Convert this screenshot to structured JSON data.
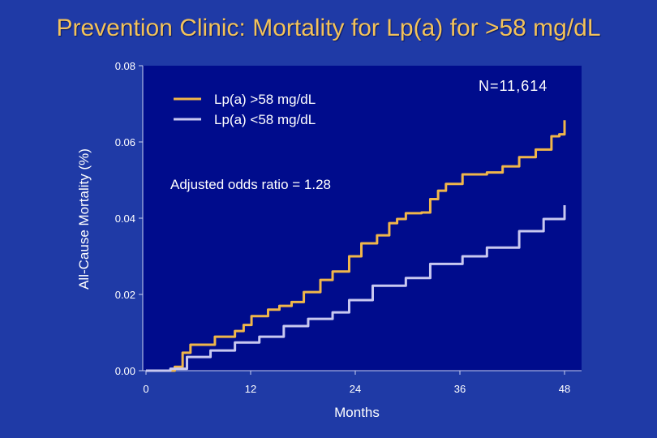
{
  "title": "Prevention Clinic: Mortality for Lp(a) for >58 mg/dL",
  "chart_data": {
    "type": "line",
    "xlabel": "Months",
    "ylabel": "All-Cause Mortality (%)",
    "xlim": [
      0,
      48
    ],
    "ylim": [
      0,
      0.08
    ],
    "xticks": [
      "0",
      "12",
      "24",
      "36",
      "48"
    ],
    "yticks": [
      "0.00",
      "0.02",
      "0.04",
      "0.06",
      "0.08"
    ],
    "grid": false,
    "legend_placement": "top-left",
    "annotations": [
      "N=11,614",
      "Adjusted odds ratio = 1.28"
    ],
    "series": [
      {
        "name": "Lp(a) >58 mg/dL",
        "color": "#f0b64a",
        "x": [
          0,
          1.9,
          3.3,
          4.2,
          5.1,
          7.4,
          7.9,
          10.2,
          11.2,
          12.1,
          14,
          15.3,
          16.7,
          18.1,
          20,
          21.4,
          23.3,
          24.7,
          26.5,
          27.9,
          28.8,
          29.8,
          31.6,
          32.6,
          33.5,
          34.4,
          36.3,
          39.1,
          40.9,
          42.8,
          44.7,
          46.5,
          47.4,
          48
        ],
        "y": [
          0,
          0,
          0.001,
          0.0047,
          0.0068,
          0.0068,
          0.0089,
          0.0104,
          0.012,
          0.0143,
          0.016,
          0.017,
          0.018,
          0.0206,
          0.0238,
          0.026,
          0.03,
          0.0334,
          0.0355,
          0.0387,
          0.0398,
          0.0413,
          0.0415,
          0.045,
          0.0472,
          0.049,
          0.0515,
          0.052,
          0.0536,
          0.056,
          0.058,
          0.0615,
          0.062,
          0.0657
        ]
      },
      {
        "name": "Lp(a) <58 mg/dL",
        "color": "#c8c8f0",
        "x": [
          0,
          2.8,
          4.7,
          7.4,
          10.2,
          13,
          15.8,
          18.6,
          21.4,
          23.3,
          26,
          29.8,
          32.6,
          36.3,
          39.1,
          42.8,
          45.6,
          48
        ],
        "y": [
          0,
          0.0005,
          0.0036,
          0.0053,
          0.0074,
          0.0089,
          0.0117,
          0.0136,
          0.0153,
          0.0185,
          0.0223,
          0.0243,
          0.028,
          0.03,
          0.0323,
          0.0366,
          0.0398,
          0.0434
        ]
      }
    ]
  }
}
